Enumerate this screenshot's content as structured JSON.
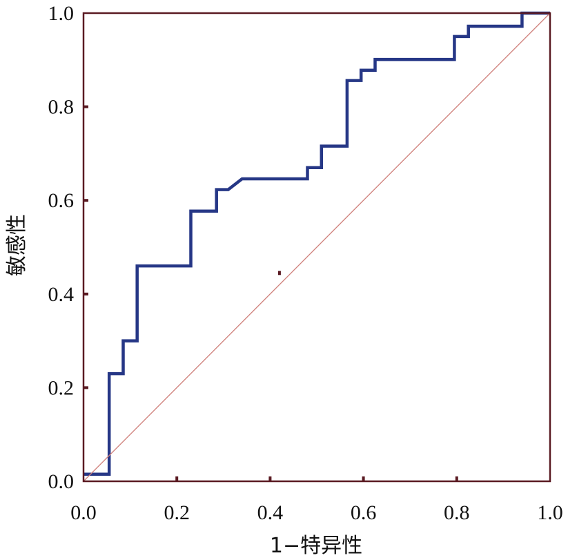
{
  "chart_data": {
    "type": "line",
    "title": "",
    "xlabel": "1−特异性",
    "ylabel": "敏感性",
    "xlim": [
      0.0,
      1.0
    ],
    "ylim": [
      0.0,
      1.0
    ],
    "xticks": [
      "0.0",
      "0.2",
      "0.4",
      "0.6",
      "0.8",
      "1.0"
    ],
    "yticks": [
      "0.0",
      "0.2",
      "0.4",
      "0.6",
      "0.8",
      "1.0"
    ],
    "grid": false,
    "legend": "none",
    "series": [
      {
        "color": "#263786",
        "step": true,
        "points": [
          [
            0.0,
            0.015
          ],
          [
            0.055,
            0.015
          ],
          [
            0.055,
            0.23
          ],
          [
            0.085,
            0.23
          ],
          [
            0.085,
            0.3
          ],
          [
            0.115,
            0.3
          ],
          [
            0.115,
            0.46
          ],
          [
            0.23,
            0.46
          ],
          [
            0.23,
            0.577
          ],
          [
            0.285,
            0.577
          ],
          [
            0.285,
            0.623
          ],
          [
            0.31,
            0.623
          ],
          [
            0.34,
            0.646
          ],
          [
            0.48,
            0.646
          ],
          [
            0.48,
            0.67
          ],
          [
            0.51,
            0.67
          ],
          [
            0.51,
            0.716
          ],
          [
            0.565,
            0.716
          ],
          [
            0.565,
            0.856
          ],
          [
            0.595,
            0.856
          ],
          [
            0.595,
            0.878
          ],
          [
            0.625,
            0.878
          ],
          [
            0.625,
            0.901
          ],
          [
            0.795,
            0.901
          ],
          [
            0.795,
            0.95
          ],
          [
            0.825,
            0.95
          ],
          [
            0.825,
            0.972
          ],
          [
            0.94,
            0.972
          ],
          [
            0.94,
            1.0
          ],
          [
            1.0,
            1.0
          ]
        ]
      },
      {
        "color": "#cf7f7a",
        "style": "reference",
        "points": [
          [
            0.0,
            0.0
          ],
          [
            1.0,
            1.0
          ]
        ]
      }
    ],
    "annotations": [
      {
        "x": 0.42,
        "y": 0.445,
        "kind": "dot"
      }
    ]
  }
}
